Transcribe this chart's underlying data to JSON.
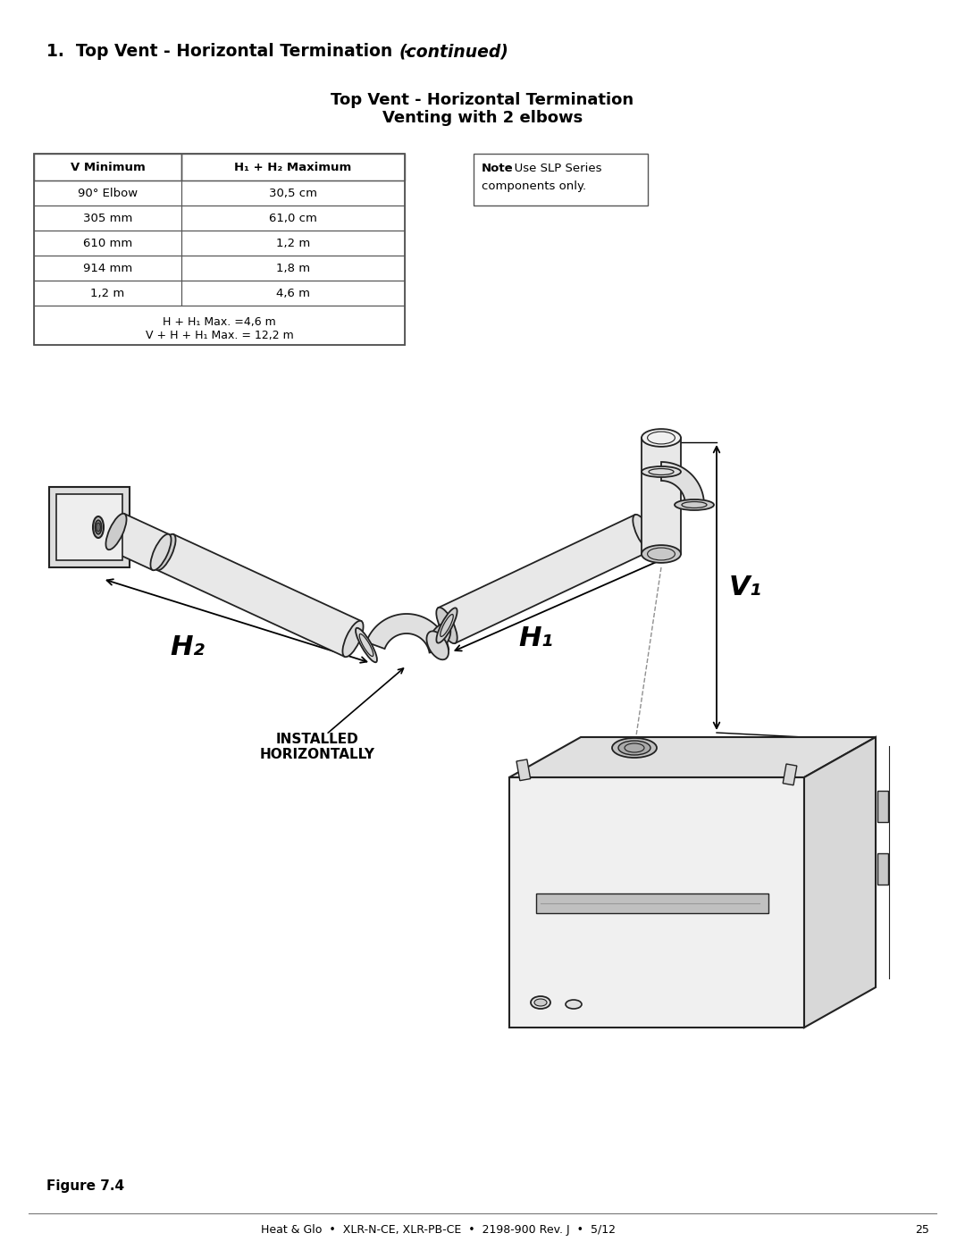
{
  "page_title_bold": "1.  Top Vent - Horizontal Termination  - ",
  "page_title_italic": "(continued)",
  "section_title_line1": "Top Vent - Horizontal Termination",
  "section_title_line2": "Venting with 2 elbows",
  "table_headers": [
    "V Minimum",
    "H₁ + H₂ Maximum"
  ],
  "table_rows": [
    [
      "90° Elbow",
      "30,5 cm"
    ],
    [
      "305 mm",
      "61,0 cm"
    ],
    [
      "610 mm",
      "1,2 m"
    ],
    [
      "914 mm",
      "1,8 m"
    ],
    [
      "1,2 m",
      "4,6 m"
    ]
  ],
  "table_footer_line1": "H + H₁ Max. =4,6 m",
  "table_footer_line2": "V + H + H₁ Max. = 12,2 m",
  "note_bold": "Note",
  "note_rest": ": Use SLP Series\ncomponents only.",
  "figure_label": "Figure 7.4",
  "footer_text": "Heat & Glo  •  XLR-N-CE, XLR-PB-CE  •  2198-900 Rev. J  •  5/12",
  "footer_page": "25",
  "bg_color": "#ffffff",
  "text_color": "#000000",
  "table_border_color": "#555555",
  "pipe_fill": "#e8e8e8",
  "pipe_edge": "#222222",
  "label_H1": "H₁",
  "label_H2": "H₂",
  "label_V1": "V₁",
  "installed_label_line1": "INSTALLED",
  "installed_label_line2": "HORIZONTALLY"
}
